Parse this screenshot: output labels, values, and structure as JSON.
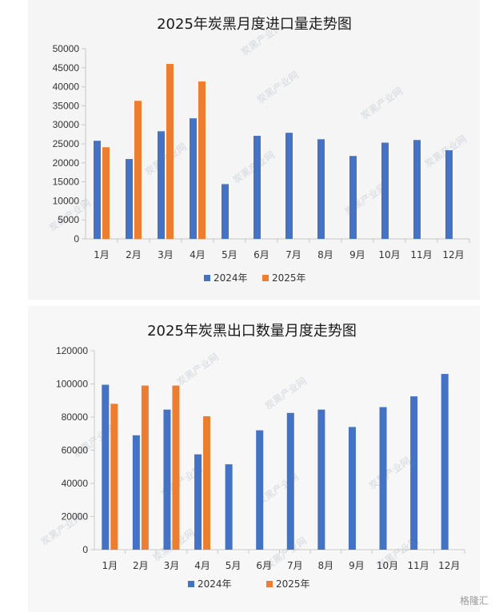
{
  "charts": [
    {
      "title": "2025年炭黑月度进口量走势图",
      "watermark": "炭黑产业网",
      "legend": [
        "2024年",
        "2025年"
      ],
      "colors": {
        "s2024": "#4472c4",
        "s2025": "#ed7d31"
      }
    },
    {
      "title": "2025年炭黑出口数量月度走势图",
      "watermark": "炭黑产业网",
      "legend": [
        "2024年",
        "2025年"
      ],
      "colors": {
        "s2024": "#4472c4",
        "s2025": "#ed7d31"
      }
    }
  ],
  "brand_watermark": "格隆汇",
  "chart_data": [
    {
      "type": "bar",
      "title": "2025年炭黑月度进口量走势图",
      "categories": [
        "1月",
        "2月",
        "3月",
        "4月",
        "5月",
        "6月",
        "7月",
        "8月",
        "9月",
        "10月",
        "11月",
        "12月"
      ],
      "series": [
        {
          "name": "2024年",
          "values": [
            25800,
            21000,
            28300,
            31700,
            14400,
            27100,
            27900,
            26200,
            21800,
            25300,
            26000,
            23300
          ]
        },
        {
          "name": "2025年",
          "values": [
            24100,
            36300,
            46000,
            41400,
            null,
            null,
            null,
            null,
            null,
            null,
            null,
            null
          ]
        }
      ],
      "ylim": [
        0,
        50000
      ],
      "yticks": [
        0,
        5000,
        10000,
        15000,
        20000,
        25000,
        30000,
        35000,
        40000,
        45000,
        50000
      ],
      "grid": false,
      "legend_position": "bottom"
    },
    {
      "type": "bar",
      "title": "2025年炭黑出口数量月度走势图",
      "categories": [
        "1月",
        "2月",
        "3月",
        "4月",
        "5月",
        "6月",
        "7月",
        "8月",
        "9月",
        "10月",
        "11月",
        "12月"
      ],
      "series": [
        {
          "name": "2024年",
          "values": [
            99500,
            69000,
            84500,
            57500,
            51500,
            72000,
            82500,
            84500,
            74000,
            86000,
            92500,
            106000
          ]
        },
        {
          "name": "2025年",
          "values": [
            88000,
            99000,
            99000,
            80500,
            null,
            null,
            null,
            null,
            null,
            null,
            null,
            null
          ]
        }
      ],
      "ylim": [
        0,
        120000
      ],
      "yticks": [
        0,
        20000,
        40000,
        60000,
        80000,
        100000,
        120000
      ],
      "grid": false,
      "legend_position": "bottom"
    }
  ]
}
